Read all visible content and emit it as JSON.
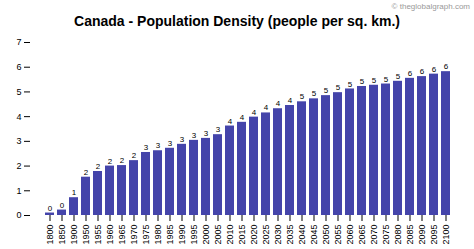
{
  "chart_data": {
    "type": "bar",
    "title": "Canada - Population Density (people per sq. km.)",
    "annotations": [
      "© theglobalgraph.com"
    ],
    "categories": [
      "1800",
      "1850",
      "1900",
      "1950",
      "1955",
      "1960",
      "1965",
      "1970",
      "1975",
      "1980",
      "1985",
      "1990",
      "1995",
      "2000",
      "2005",
      "2010",
      "2015",
      "2020",
      "2025",
      "2030",
      "2035",
      "2040",
      "2045",
      "2050",
      "2055",
      "2060",
      "2065",
      "2070",
      "2075",
      "2080",
      "2085",
      "2090",
      "2095",
      "2100"
    ],
    "values": [
      0.1,
      0.22,
      0.72,
      1.55,
      1.78,
      2.0,
      2.02,
      2.22,
      2.55,
      2.62,
      2.72,
      2.88,
      3.04,
      3.12,
      3.27,
      3.62,
      3.77,
      3.98,
      4.15,
      4.32,
      4.45,
      4.6,
      4.72,
      4.85,
      4.97,
      5.12,
      5.22,
      5.27,
      5.32,
      5.43,
      5.55,
      5.62,
      5.72,
      5.82
    ],
    "value_labels": [
      "0",
      "0",
      "1",
      "2",
      "2",
      "2",
      "2",
      "2",
      "3",
      "3",
      "3",
      "3",
      "3",
      "3",
      "3",
      "4",
      "4",
      "4",
      "4",
      "4",
      "4",
      "5",
      "5",
      "5",
      "5",
      "5",
      "5",
      "5",
      "5",
      "5",
      "6",
      "6",
      "6",
      "6"
    ],
    "data_labels": true,
    "color": "#4444aa",
    "ylim": [
      0,
      7
    ],
    "yticks": [
      0,
      1,
      2,
      3,
      4,
      5,
      6,
      7
    ],
    "grid": false
  }
}
